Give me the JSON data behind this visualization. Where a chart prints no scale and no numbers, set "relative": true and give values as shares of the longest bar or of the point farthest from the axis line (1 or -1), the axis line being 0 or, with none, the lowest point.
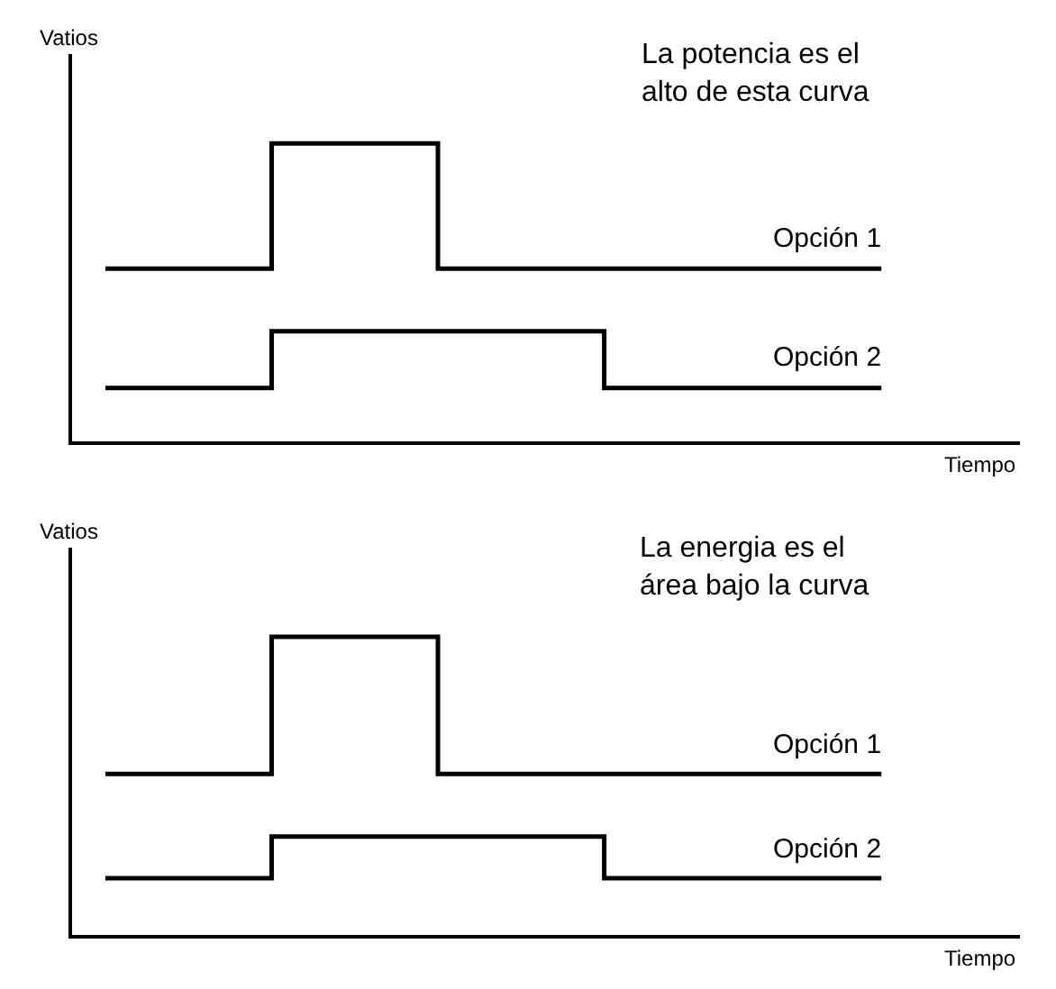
{
  "chart_data": [
    {
      "type": "step",
      "relative": true,
      "ylabel": "Vatios",
      "xlabel": "Tiempo",
      "annotations": [
        "La potencia es el\nalto de esta curva"
      ],
      "categories": [
        null,
        null,
        null,
        null,
        null,
        null,
        null,
        null,
        null,
        null,
        null,
        null,
        null,
        null,
        null
      ],
      "line_style": "solid",
      "series": [
        {
          "name": "Opción 1",
          "color": "#000000",
          "values": [
            0.58,
            0.58,
            0.58,
            1,
            1,
            1,
            0.58,
            0.58,
            0.58,
            0.58,
            0.58,
            0.58,
            0.58,
            0.58,
            0.58
          ]
        },
        {
          "name": "Opción 2",
          "color": "#000000",
          "values": [
            0.18,
            0.18,
            0.18,
            0.37,
            0.37,
            0.37,
            0.37,
            0.37,
            0.37,
            0.18,
            0.18,
            0.18,
            0.18,
            0.18,
            0.18
          ]
        }
      ]
    },
    {
      "type": "step",
      "relative": true,
      "ylabel": "Vatios",
      "xlabel": "Tiempo",
      "annotations": [
        "La energia es el\nárea bajo la curva"
      ],
      "categories": [
        null,
        null,
        null,
        null,
        null,
        null,
        null,
        null,
        null,
        null,
        null,
        null,
        null,
        null,
        null
      ],
      "line_style": "solid",
      "series": [
        {
          "name": "Opción 1",
          "color": "#000000",
          "values": [
            0.54,
            0.54,
            0.54,
            1,
            1,
            1,
            0.54,
            0.54,
            0.54,
            0.54,
            0.54,
            0.54,
            0.54,
            0.54,
            0.54
          ]
        },
        {
          "name": "Opción 2",
          "color": "#000000",
          "values": [
            0.19,
            0.19,
            0.19,
            0.33,
            0.33,
            0.33,
            0.33,
            0.33,
            0.33,
            0.19,
            0.19,
            0.19,
            0.19,
            0.19,
            0.19
          ]
        }
      ]
    }
  ]
}
